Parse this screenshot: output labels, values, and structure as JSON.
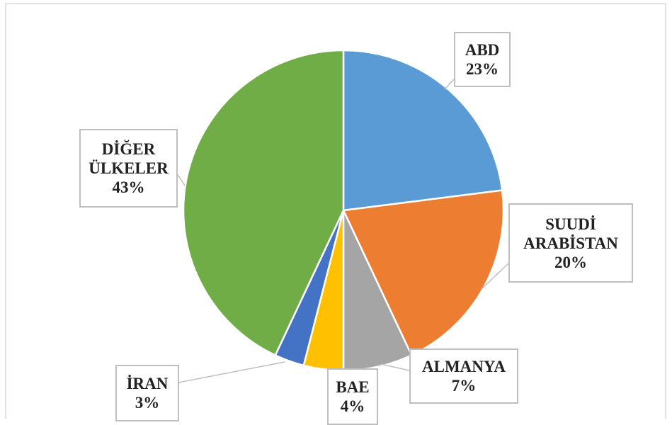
{
  "chart_data": {
    "type": "pie",
    "categories": [
      "ABD",
      "SUUDİ ARABİSTAN",
      "ALMANYA",
      "BAE",
      "İRAN",
      "DİĞER ÜLKELER"
    ],
    "values": [
      23,
      20,
      7,
      4,
      3,
      43
    ],
    "value_labels": [
      "23%",
      "20%",
      "7%",
      "4%",
      "3%",
      "43%"
    ],
    "colors": [
      "#5b9bd5",
      "#ed7d31",
      "#a5a5a5",
      "#ffc000",
      "#4472c4",
      "#70ad47"
    ]
  }
}
